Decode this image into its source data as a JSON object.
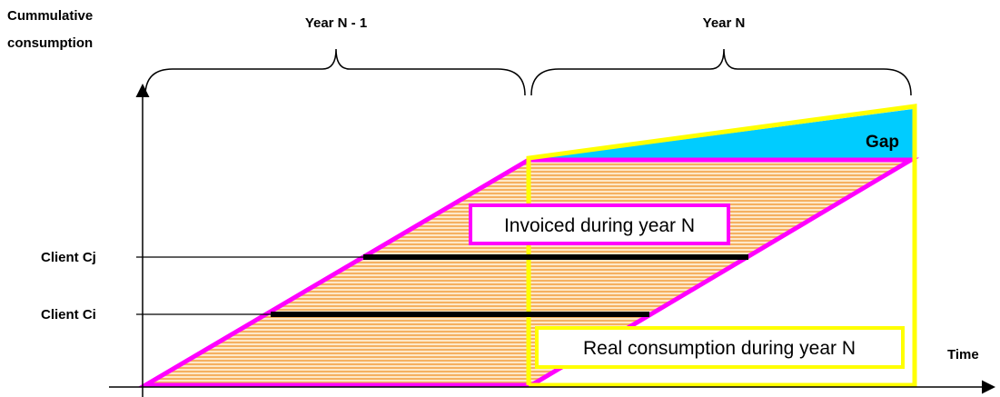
{
  "y_axis_label": [
    "Cummulative",
    "consumption"
  ],
  "x_axis_label": "Time",
  "periods": [
    "Year N - 1",
    "Year N"
  ],
  "gap_label": "Gap",
  "invoiced_label": "Invoiced during year N",
  "real_label": "Real consumption during year N",
  "clients": [
    "Client Cj",
    "Client Ci"
  ]
}
